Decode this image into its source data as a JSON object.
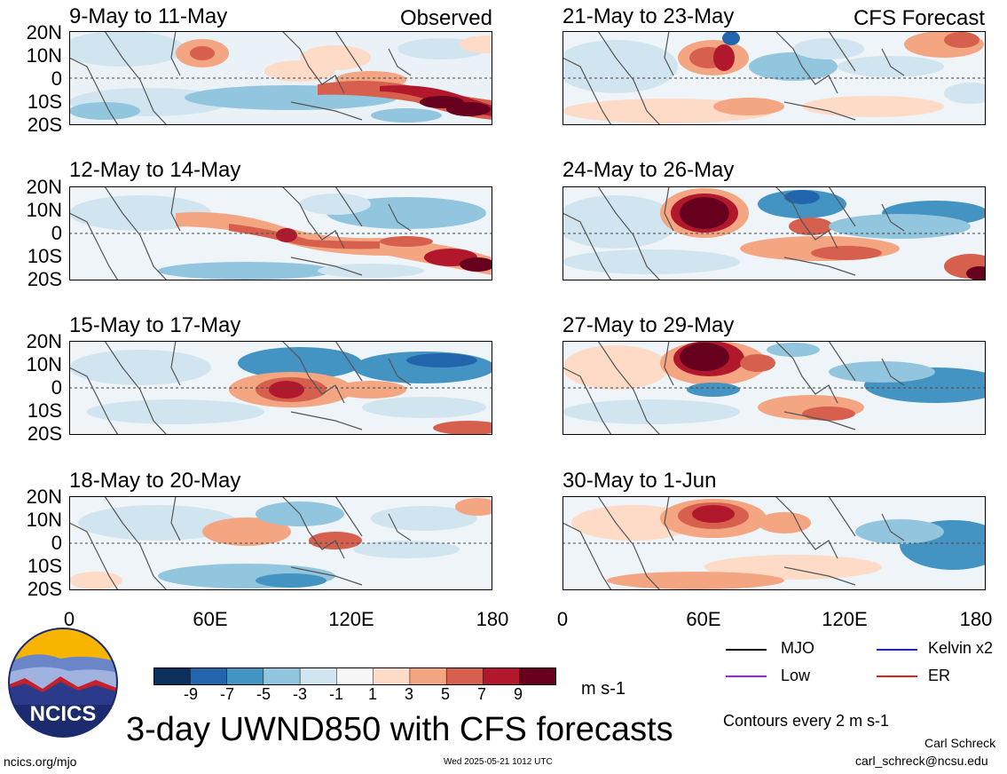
{
  "left_column_tag": "Observed",
  "right_column_tag": "CFS Forecast",
  "left_panels": [
    {
      "title": "9-May to 11-May"
    },
    {
      "title": "12-May to 14-May"
    },
    {
      "title": "15-May to 17-May"
    },
    {
      "title": "18-May to 20-May"
    }
  ],
  "right_panels": [
    {
      "title": "21-May to 23-May"
    },
    {
      "title": "24-May to 26-May"
    },
    {
      "title": "27-May to 29-May"
    },
    {
      "title": "30-May to 1-Jun"
    }
  ],
  "lat_labels": [
    "20N",
    "10N",
    "0",
    "10S",
    "20S"
  ],
  "lon_labels": [
    "0",
    "60E",
    "120E",
    "180"
  ],
  "colorbar": {
    "ticks": [
      "-9",
      "-7",
      "-5",
      "-3",
      "-1",
      "1",
      "3",
      "5",
      "7",
      "9"
    ],
    "unit": "m s-1",
    "colors": [
      "#0d2f5c",
      "#2166ac",
      "#4393c3",
      "#92c5de",
      "#d1e5f0",
      "#f7f7f7",
      "#fddbc7",
      "#f4a582",
      "#d6604d",
      "#b2182b",
      "#67001f"
    ]
  },
  "legend": {
    "mjo": {
      "label": "MJO",
      "color": "#000000"
    },
    "kelvin": {
      "label": "Kelvin x2",
      "color": "#1a1aff"
    },
    "low": {
      "label": "Low",
      "color": "#a020f0"
    },
    "er": {
      "label": "ER",
      "color": "#e02020"
    }
  },
  "main_title": "3-day UWND850 with CFS forecasts",
  "contour_note": "Contours every 2 m s-1",
  "author": "Carl Schreck",
  "email": "carl_schreck@ncsu.edu",
  "site": "ncics.org/mjo",
  "timestamp": "Wed 2025-05-21 1012 UTC",
  "logo_text": "NCICS"
}
